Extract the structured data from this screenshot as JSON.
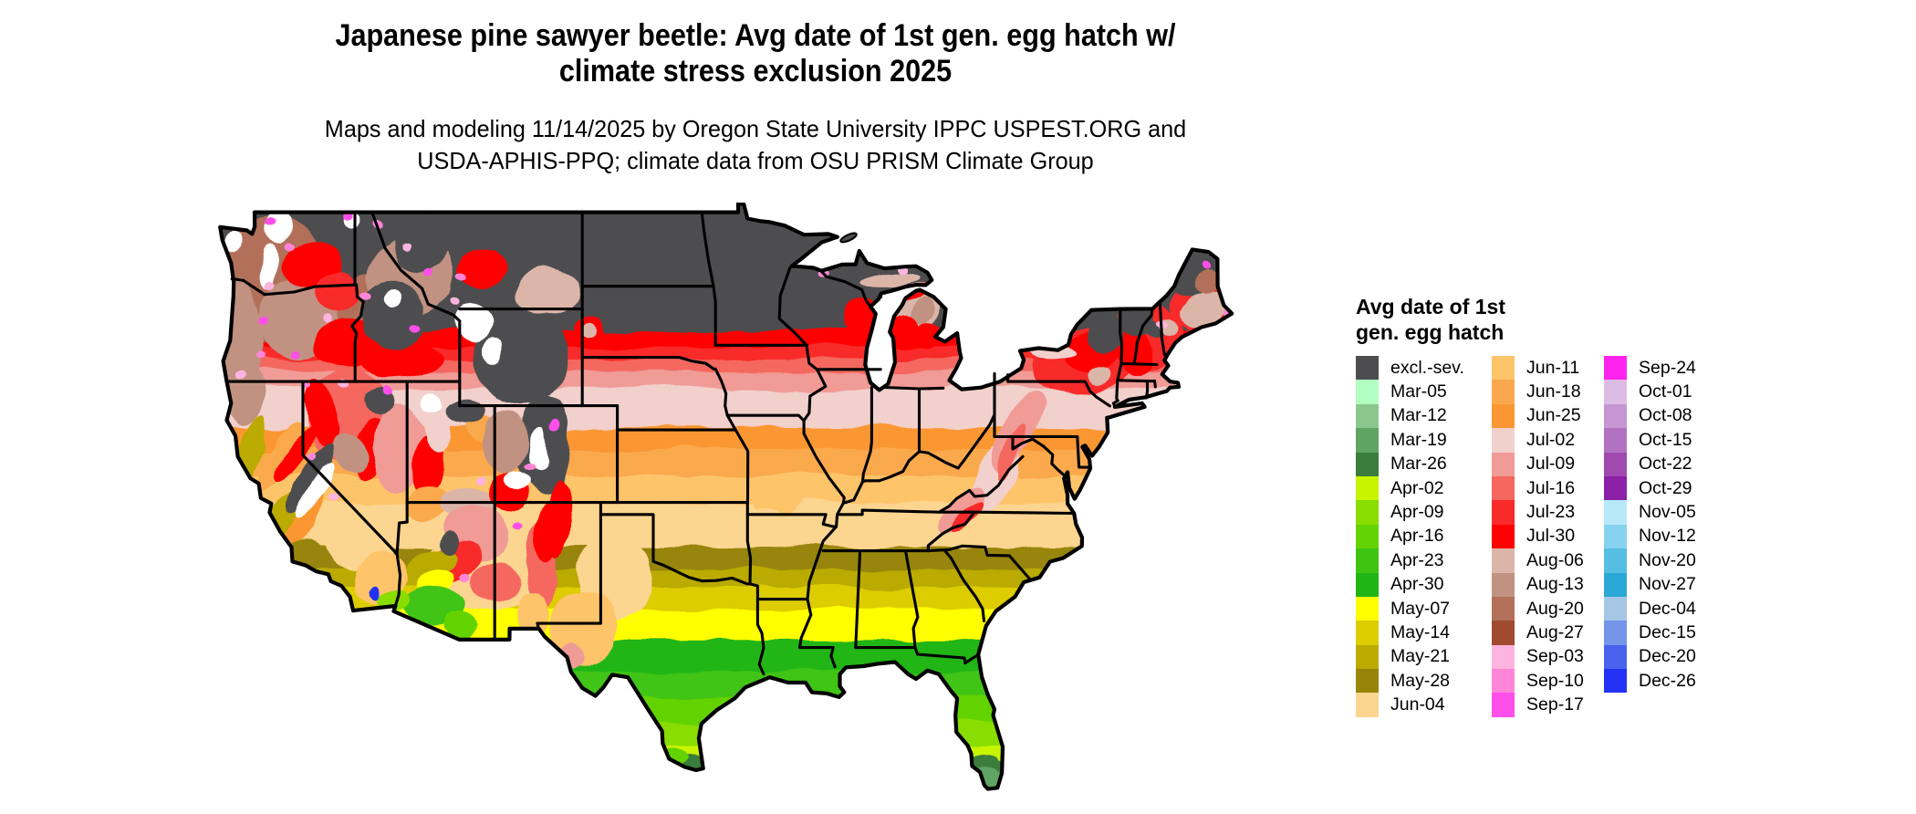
{
  "header": {
    "title_line1": "Japanese pine sawyer beetle: Avg date of 1st gen. egg hatch w/",
    "title_line2": "climate stress exclusion 2025",
    "subtitle_line1": "Maps and modeling 11/14/2025 by Oregon State University IPPC USPEST.ORG and",
    "subtitle_line2": "USDA-APHIS-PPQ; climate data from OSU PRISM Climate Group"
  },
  "legend": {
    "title_line1": "Avg date of 1st",
    "title_line2": "gen. egg hatch",
    "columns": [
      [
        {
          "label": "excl.-sev.",
          "color": "#4d4d4f"
        },
        {
          "label": "Mar-05",
          "color": "#b2ffc2"
        },
        {
          "label": "Mar-12",
          "color": "#8cc88e"
        },
        {
          "label": "Mar-19",
          "color": "#60a463"
        },
        {
          "label": "Mar-26",
          "color": "#3b7d3c"
        },
        {
          "label": "Apr-02",
          "color": "#c8f400"
        },
        {
          "label": "Apr-09",
          "color": "#89dd00"
        },
        {
          "label": "Apr-16",
          "color": "#63d303"
        },
        {
          "label": "Apr-23",
          "color": "#40c414"
        },
        {
          "label": "Apr-30",
          "color": "#20b514"
        },
        {
          "label": "May-07",
          "color": "#ffff00"
        },
        {
          "label": "May-14",
          "color": "#ddcc00"
        },
        {
          "label": "May-21",
          "color": "#bbaa00"
        },
        {
          "label": "May-28",
          "color": "#97850a"
        },
        {
          "label": "Jun-04",
          "color": "#fcd591"
        }
      ],
      [
        {
          "label": "Jun-11",
          "color": "#fec46a"
        },
        {
          "label": "Jun-18",
          "color": "#fba94e"
        },
        {
          "label": "Jun-25",
          "color": "#fb9733"
        },
        {
          "label": "Jul-02",
          "color": "#f2d0cc"
        },
        {
          "label": "Jul-09",
          "color": "#f09b96"
        },
        {
          "label": "Jul-16",
          "color": "#f4685f"
        },
        {
          "label": "Jul-23",
          "color": "#f92a2a"
        },
        {
          "label": "Jul-30",
          "color": "#ff0000"
        },
        {
          "label": "Aug-06",
          "color": "#dcb5a9"
        },
        {
          "label": "Aug-13",
          "color": "#c19282"
        },
        {
          "label": "Aug-20",
          "color": "#b2705a"
        },
        {
          "label": "Aug-27",
          "color": "#a04a30"
        },
        {
          "label": "Sep-03",
          "color": "#fdb4de"
        },
        {
          "label": "Sep-10",
          "color": "#ff85d9"
        },
        {
          "label": "Sep-17",
          "color": "#ff4fe9"
        }
      ],
      [
        {
          "label": "Sep-24",
          "color": "#fe24ed"
        },
        {
          "label": "Oct-01",
          "color": "#dcbce4"
        },
        {
          "label": "Oct-08",
          "color": "#c596d2"
        },
        {
          "label": "Oct-15",
          "color": "#b173c1"
        },
        {
          "label": "Oct-22",
          "color": "#a04ab0"
        },
        {
          "label": "Oct-29",
          "color": "#8c20a6"
        },
        {
          "label": "Nov-05",
          "color": "#b7e9fb"
        },
        {
          "label": "Nov-12",
          "color": "#87d3ef"
        },
        {
          "label": "Nov-20",
          "color": "#56bee2"
        },
        {
          "label": "Nov-27",
          "color": "#2ba8d5"
        },
        {
          "label": "Dec-04",
          "color": "#a5c6e4"
        },
        {
          "label": "Dec-15",
          "color": "#7495e9"
        },
        {
          "label": "Dec-20",
          "color": "#4a63ee"
        },
        {
          "label": "Dec-26",
          "color": "#2432f4"
        }
      ]
    ]
  },
  "map": {
    "border_color": "#000000",
    "water_color": "#ffffff"
  }
}
